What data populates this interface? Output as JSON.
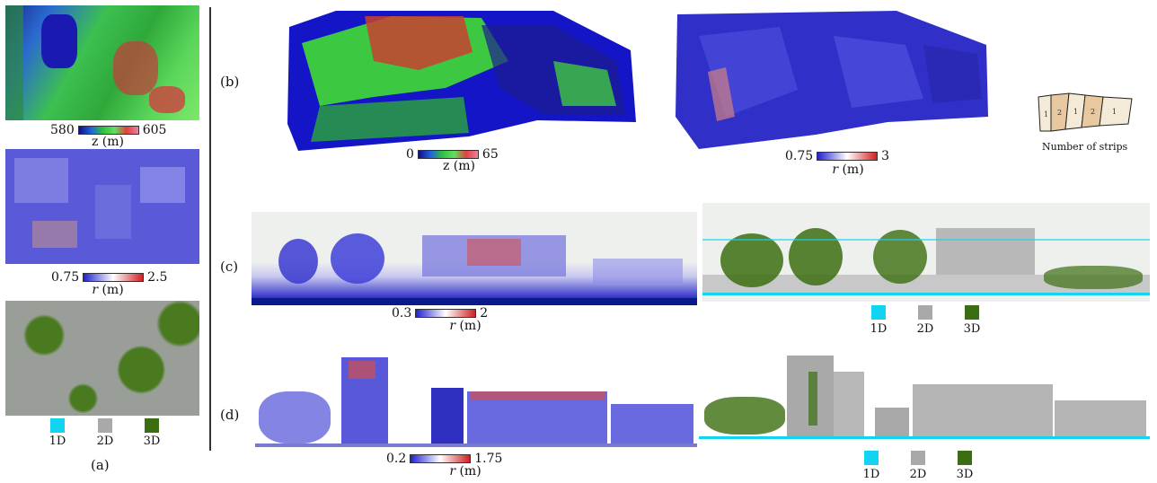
{
  "panel_labels": {
    "a": "(a)",
    "b": "(b)",
    "c": "(c)",
    "d": "(d)"
  },
  "colors": {
    "c1d": "#12d4f0",
    "c2d": "#a9a9a9",
    "c3d": "#3b6e10",
    "blue": "#2323d8",
    "red": "#d92020",
    "green": "#3cd43c",
    "white": "#ffffff"
  },
  "a_top": {
    "min": "580",
    "max": "605",
    "unit": "z (m)"
  },
  "a_mid": {
    "min": "0.75",
    "max": "2.5",
    "unit_var": "r",
    "unit_rest": " (m)"
  },
  "a_legend": [
    "1D",
    "2D",
    "3D"
  ],
  "b_left": {
    "min": "0",
    "max": "65",
    "unit": "z (m)"
  },
  "b_right": {
    "min": "0.75",
    "max": "3",
    "unit_var": "r",
    "unit_rest": " (m)"
  },
  "strips": {
    "numbers": [
      "1",
      "2",
      "1",
      "2",
      "1"
    ],
    "caption": "Number of strips"
  },
  "c_left": {
    "min": "0.3",
    "max": "2",
    "unit_var": "r",
    "unit_rest": " (m)"
  },
  "c_legend": [
    "1D",
    "2D",
    "3D"
  ],
  "d_left": {
    "min": "0.2",
    "max": "1.75",
    "unit_var": "r",
    "unit_rest": " (m)"
  },
  "d_legend": [
    "1D",
    "2D",
    "3D"
  ]
}
